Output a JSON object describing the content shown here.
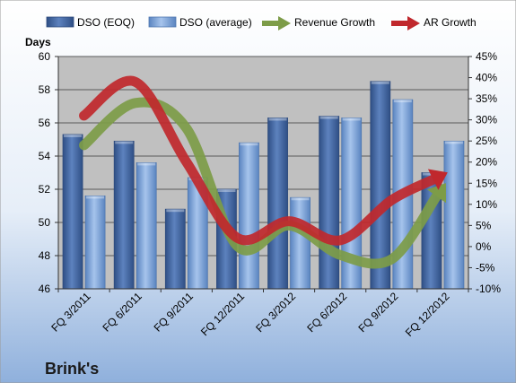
{
  "chart_data": {
    "type": "bar",
    "brand_label": "Brink's",
    "left_axis_title": "Days",
    "categories": [
      "FQ 3/2011",
      "FQ 6/2011",
      "FQ 9/2011",
      "FQ 12/2011",
      "FQ 3/2012",
      "FQ 6/2012",
      "FQ 9/2012",
      "FQ 12/2012"
    ],
    "left_axis": {
      "min": 46,
      "max": 60,
      "step": 2,
      "ticks": [
        "46",
        "48",
        "50",
        "52",
        "54",
        "56",
        "58",
        "60"
      ]
    },
    "right_axis": {
      "min": -10,
      "max": 45,
      "step": 5,
      "ticks": [
        "-10%",
        "-5%",
        "0%",
        "5%",
        "10%",
        "15%",
        "20%",
        "25%",
        "30%",
        "35%",
        "40%",
        "45%"
      ]
    },
    "grid": true,
    "legend_position": "top",
    "series": [
      {
        "name": "DSO (EOQ)",
        "kind": "bar",
        "axis": "left",
        "color": "#4a6ea8",
        "values": [
          55.3,
          54.9,
          50.8,
          52.0,
          56.3,
          56.4,
          58.5,
          53.0
        ]
      },
      {
        "name": "DSO (average)",
        "kind": "bar",
        "axis": "left",
        "color": "#7fa7d8",
        "values": [
          51.6,
          53.6,
          52.7,
          54.8,
          51.5,
          56.3,
          57.4,
          54.9
        ]
      },
      {
        "name": "Revenue Growth",
        "kind": "arrow-line",
        "axis": "right",
        "color": "#7d9c48",
        "values": [
          24,
          34,
          28,
          0,
          5,
          -2,
          -3,
          14
        ]
      },
      {
        "name": "AR Growth",
        "kind": "arrow-line",
        "axis": "right",
        "color": "#c0282d",
        "values": [
          31,
          39,
          20,
          2,
          6,
          1.5,
          11,
          17
        ]
      }
    ],
    "colors": {
      "background_top": "#ffffff",
      "background_bottom": "#8fb0dc",
      "plot_area": "#c0c0c0",
      "gridline": "#5a5a5a"
    }
  }
}
